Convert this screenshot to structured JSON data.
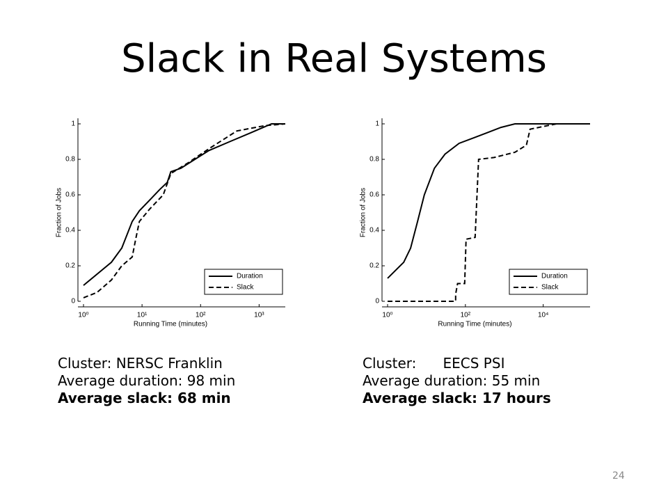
{
  "title": "Slack in Real Systems",
  "captions": [
    [
      "Cluster: NERSC Franklin",
      "Average duration: 98 min",
      "Average slack: 68 min"
    ],
    [
      "Cluster:      EECS PSI",
      "Average duration: 55 min",
      "Average slack: 17 hours"
    ]
  ],
  "page_number": "24",
  "chart_data": [
    {
      "type": "line",
      "xlabel": "Running Time (minutes)",
      "ylabel": "Fraction of Jobs",
      "xscale": "log",
      "xlim": [
        1,
        2800
      ],
      "ylim": [
        0,
        1
      ],
      "xticks": [
        {
          "value": 1,
          "label": "10⁰"
        },
        {
          "value": 10,
          "label": "10¹"
        },
        {
          "value": 100,
          "label": "10²"
        },
        {
          "value": 1000,
          "label": "10³"
        }
      ],
      "yticks": [
        0,
        0.2,
        0.4,
        0.6,
        0.8,
        1
      ],
      "legend": "lower right",
      "series": [
        {
          "name": "Duration",
          "color": "#000000",
          "dash": false,
          "x": [
            1,
            3.0,
            4.5,
            6.8,
            9.0,
            13.5,
            20,
            27,
            31,
            46,
            80,
            139,
            316,
            720,
            1630,
            2800
          ],
          "values": [
            0.09,
            0.22,
            0.3,
            0.45,
            0.51,
            0.57,
            0.63,
            0.67,
            0.73,
            0.75,
            0.8,
            0.85,
            0.9,
            0.95,
            1.0,
            1.0
          ]
        },
        {
          "name": "Slack",
          "color": "#000000",
          "dash": true,
          "x": [
            1,
            1.7,
            3.0,
            4.5,
            6.8,
            7.8,
            9.0,
            13.5,
            23,
            31,
            61,
            139,
            417,
            1250,
            2800
          ],
          "values": [
            0.02,
            0.05,
            0.12,
            0.2,
            0.25,
            0.35,
            0.45,
            0.52,
            0.6,
            0.72,
            0.78,
            0.86,
            0.96,
            0.99,
            1.0
          ]
        }
      ]
    },
    {
      "type": "line",
      "xlabel": "Running Time (minutes)",
      "ylabel": "Fraction of Jobs",
      "xscale": "log",
      "xlim": [
        1,
        160000
      ],
      "ylim": [
        0,
        1
      ],
      "xticks": [
        {
          "value": 1,
          "label": "10⁰"
        },
        {
          "value": 100,
          "label": "10²"
        },
        {
          "value": 10000,
          "label": "10⁴"
        }
      ],
      "yticks": [
        0,
        0.2,
        0.4,
        0.6,
        0.8,
        1
      ],
      "legend": "lower right",
      "series": [
        {
          "name": "Duration",
          "color": "#000000",
          "dash": false,
          "x": [
            1,
            2.6,
            3.9,
            5.9,
            8.8,
            16,
            30,
            69,
            158,
            360,
            820,
            1870,
            160000
          ],
          "values": [
            0.13,
            0.22,
            0.3,
            0.45,
            0.6,
            0.75,
            0.83,
            0.89,
            0.92,
            0.95,
            0.98,
            1.0,
            1.0
          ]
        },
        {
          "name": "Slack",
          "color": "#000000",
          "dash": true,
          "x": [
            1,
            56,
            56,
            63,
            96,
            104,
            178,
            218,
            540,
            1870,
            3700,
            4600,
            7700,
            22000,
            160000
          ],
          "values": [
            0,
            0,
            0.04,
            0.1,
            0.1,
            0.35,
            0.36,
            0.8,
            0.81,
            0.84,
            0.88,
            0.97,
            0.98,
            1.0,
            1.0
          ]
        }
      ]
    }
  ]
}
